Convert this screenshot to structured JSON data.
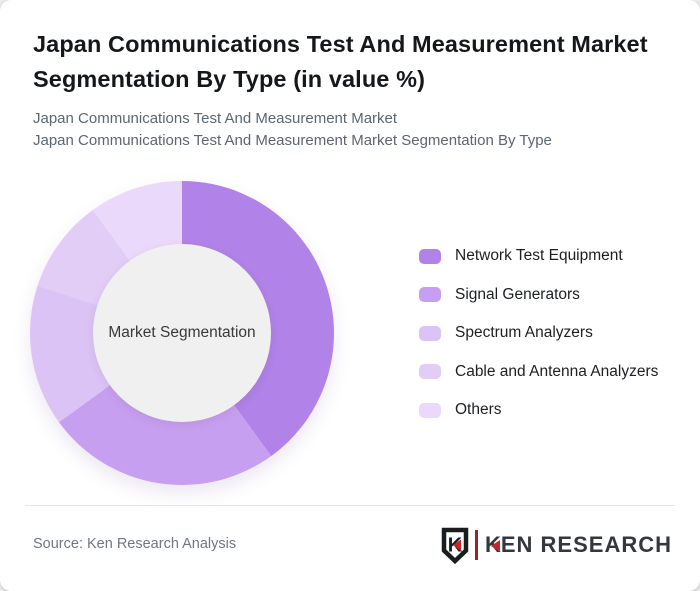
{
  "header": {
    "title_line1": "Japan Communications Test And Measurement Market",
    "title_line2": "Segmentation By Type (in value %)",
    "subtitle_line1": "Japan Communications Test And Measurement Market",
    "subtitle_line2": "Japan Communications Test And Measurement Market Segmentation By Type"
  },
  "chart_data": {
    "type": "pie",
    "style": "donut",
    "title": "Japan Communications Test And Measurement Market Segmentation By Type (in value %)",
    "center_label": "Market Segmentation",
    "categories": [
      "Network Test Equipment",
      "Signal Generators",
      "Spectrum Analyzers",
      "Cable and Antenna Analyzers",
      "Others"
    ],
    "values": [
      40,
      25,
      15,
      10,
      10
    ],
    "unit": "%",
    "colors": [
      "#b182e7",
      "#c79ff0",
      "#dcc3f5",
      "#e2cdf7",
      "#ead9fa"
    ],
    "hole_color": "#f0f0f0",
    "start_angle_deg": 0,
    "direction": "clockwise",
    "legend_position": "right",
    "data_labels_shown": false
  },
  "footer": {
    "source": "Source: Ken Research Analysis",
    "logo": {
      "emblem_letter": "K",
      "brand_k": "K",
      "brand_rest": "EN RESEARCH",
      "accent_color": "#c8242b"
    }
  }
}
